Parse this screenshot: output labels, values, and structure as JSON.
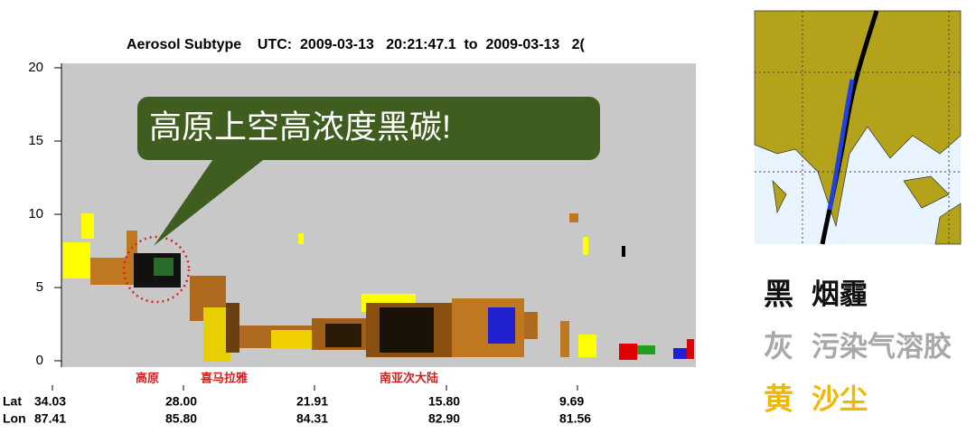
{
  "plot": {
    "title": "Aerosol Subtype    UTC:  2009-03-13   20:21:47.1  to  2009-03-13   2(",
    "yticks": [
      0,
      5,
      10,
      15,
      20
    ],
    "regions": [
      "高原",
      "喜马拉雅",
      "南亚次大陆"
    ],
    "row_labels": [
      "Lat",
      "Lon"
    ],
    "lat": [
      "34.03",
      "28.00",
      "21.91",
      "15.80",
      "9.69"
    ],
    "lon": [
      "87.41",
      "85.80",
      "84.31",
      "82.90",
      "81.56"
    ]
  },
  "callout": {
    "text": "高原上空高浓度黑碳!"
  },
  "legend": [
    {
      "key": "黑",
      "label": "烟霾"
    },
    {
      "key": "灰",
      "label": "污染气溶胶"
    },
    {
      "key": "黄",
      "label": "沙尘"
    }
  ]
}
